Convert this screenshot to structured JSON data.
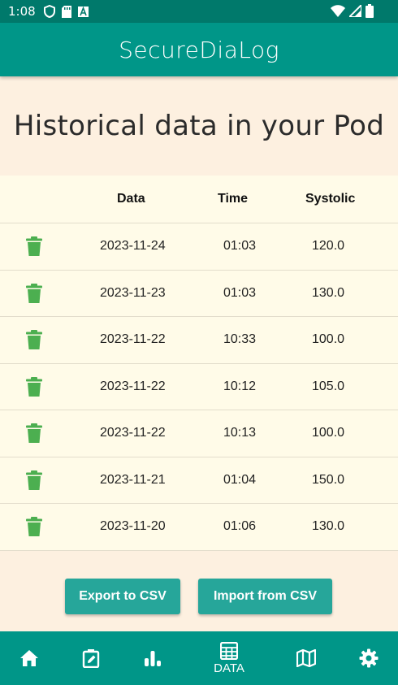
{
  "status_bar": {
    "time": "1:08"
  },
  "app_bar": {
    "title": "SecureDiaLog"
  },
  "page": {
    "heading": "Historical data in your Pod"
  },
  "table": {
    "headers": {
      "date": "Data",
      "time": "Time",
      "systolic": "Systolic"
    },
    "rows": [
      {
        "date": "2023-11-24",
        "time": "01:03",
        "systolic": "120.0"
      },
      {
        "date": "2023-11-23",
        "time": "01:03",
        "systolic": "130.0"
      },
      {
        "date": "2023-11-22",
        "time": "10:33",
        "systolic": "100.0"
      },
      {
        "date": "2023-11-22",
        "time": "10:12",
        "systolic": "105.0"
      },
      {
        "date": "2023-11-22",
        "time": "10:13",
        "systolic": "100.0"
      },
      {
        "date": "2023-11-21",
        "time": "01:04",
        "systolic": "150.0"
      },
      {
        "date": "2023-11-20",
        "time": "01:06",
        "systolic": "130.0"
      }
    ]
  },
  "actions": {
    "export_label": "Export to CSV",
    "import_label": "Import from CSV"
  },
  "bottom_nav": {
    "items": [
      {
        "icon": "home-icon"
      },
      {
        "icon": "edit-note-icon"
      },
      {
        "icon": "bar-chart-icon"
      },
      {
        "icon": "table-grid-icon",
        "label": "DATA",
        "active": true
      },
      {
        "icon": "map-icon"
      },
      {
        "icon": "gear-icon"
      }
    ]
  },
  "colors": {
    "status_bar": "#00796b",
    "primary": "#009688",
    "button": "#26a69a",
    "trash_icon": "#4caf50",
    "page_bg": "#fdf0e0",
    "table_bg": "#fffbe8"
  }
}
